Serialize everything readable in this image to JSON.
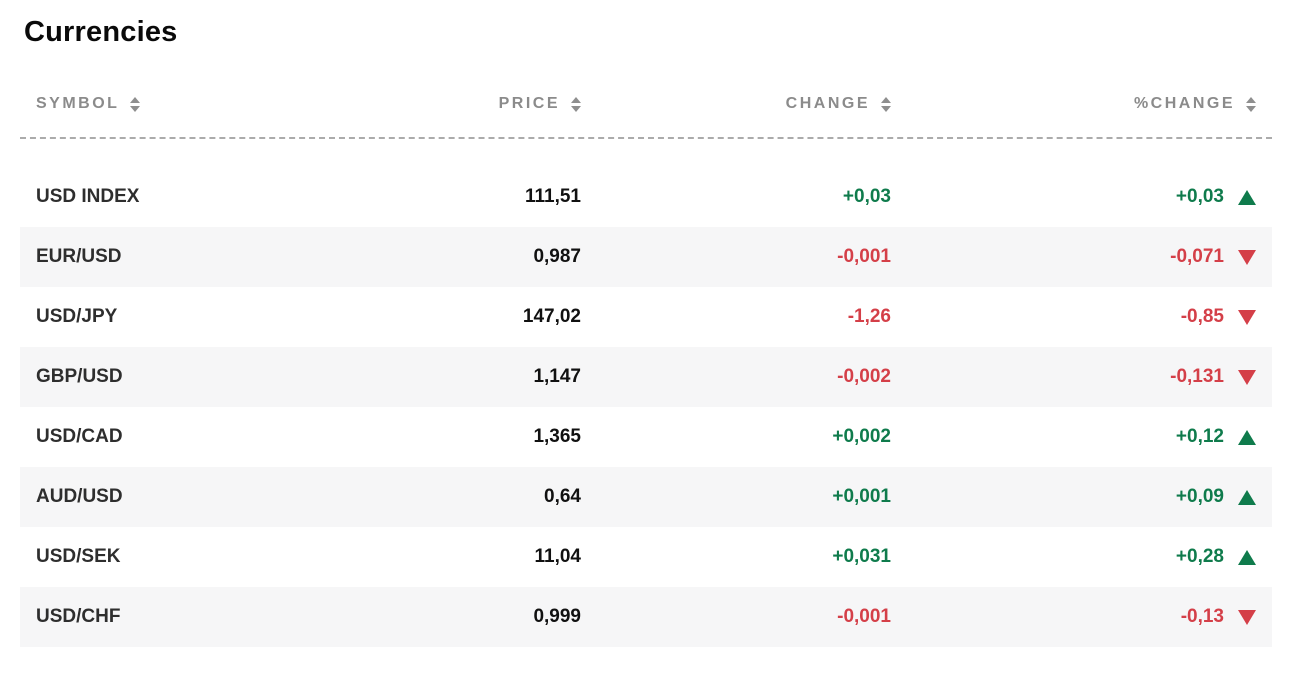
{
  "page": {
    "title": "Currencies"
  },
  "colors": {
    "positive": "#0f7b4c",
    "negative": "#d43f48"
  },
  "icons": {
    "sort": "sort-arrows",
    "up": "triangle-up",
    "down": "triangle-down"
  },
  "table": {
    "columns": [
      {
        "key": "symbol",
        "label": "SYMBOL"
      },
      {
        "key": "price",
        "label": "PRICE"
      },
      {
        "key": "change",
        "label": "CHANGE"
      },
      {
        "key": "pct_change",
        "label": "%CHANGE"
      }
    ],
    "rows": [
      {
        "symbol": "USD INDEX",
        "price": "111,51",
        "change": "+0,03",
        "pct_change": "+0,03",
        "direction": "up"
      },
      {
        "symbol": "EUR/USD",
        "price": "0,987",
        "change": "-0,001",
        "pct_change": "-0,071",
        "direction": "down"
      },
      {
        "symbol": "USD/JPY",
        "price": "147,02",
        "change": "-1,26",
        "pct_change": "-0,85",
        "direction": "down"
      },
      {
        "symbol": "GBP/USD",
        "price": "1,147",
        "change": "-0,002",
        "pct_change": "-0,131",
        "direction": "down"
      },
      {
        "symbol": "USD/CAD",
        "price": "1,365",
        "change": "+0,002",
        "pct_change": "+0,12",
        "direction": "up"
      },
      {
        "symbol": "AUD/USD",
        "price": "0,64",
        "change": "+0,001",
        "pct_change": "+0,09",
        "direction": "up"
      },
      {
        "symbol": "USD/SEK",
        "price": "11,04",
        "change": "+0,031",
        "pct_change": "+0,28",
        "direction": "up"
      },
      {
        "symbol": "USD/CHF",
        "price": "0,999",
        "change": "-0,001",
        "pct_change": "-0,13",
        "direction": "down"
      }
    ]
  }
}
